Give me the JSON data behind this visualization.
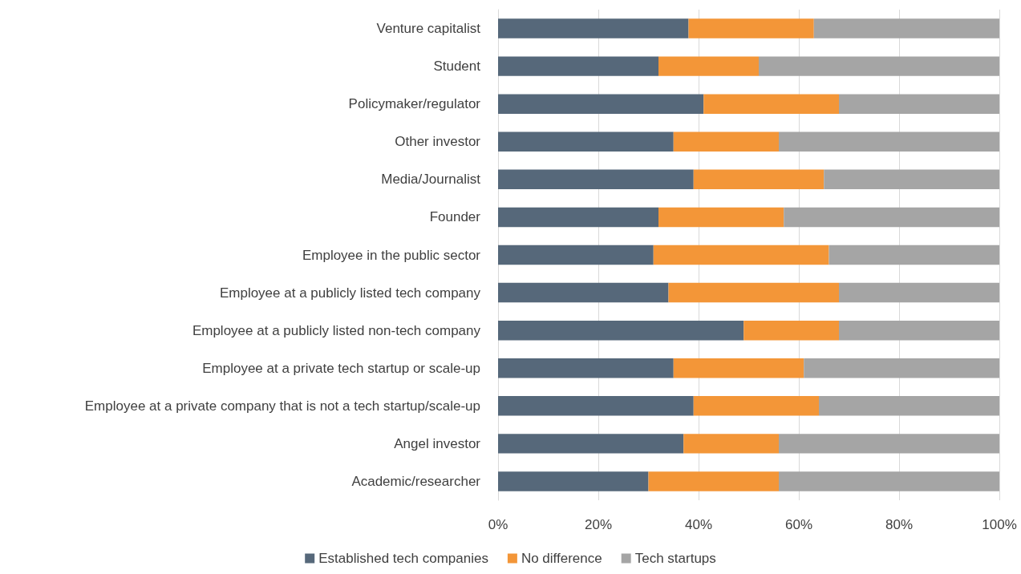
{
  "chart_data": {
    "type": "bar",
    "orientation": "horizontal",
    "stacked": true,
    "categories": [
      "Venture capitalist",
      "Student",
      "Policymaker/regulator",
      "Other investor",
      "Media/Journalist",
      "Founder",
      "Employee in the public sector",
      "Employee at a publicly listed tech company",
      "Employee at a publicly listed non-tech company",
      "Employee at a private tech startup or scale-up",
      "Employee at a private company that is not a tech startup/scale-up",
      "Angel investor",
      "Academic/researcher"
    ],
    "series": [
      {
        "name": "Established tech companies",
        "color": "#56687a",
        "values": [
          38,
          32,
          41,
          35,
          39,
          32,
          31,
          34,
          49,
          35,
          39,
          37,
          30
        ]
      },
      {
        "name": "No difference",
        "color": "#f39638",
        "values": [
          25,
          20,
          27,
          21,
          26,
          25,
          35,
          34,
          19,
          26,
          25,
          19,
          26
        ]
      },
      {
        "name": "Tech startups",
        "color": "#a5a5a5",
        "values": [
          37,
          48,
          32,
          44,
          35,
          43,
          34,
          32,
          32,
          39,
          36,
          44,
          44
        ]
      }
    ],
    "xlim": [
      0,
      100
    ],
    "xticks": [
      {
        "value": 0,
        "label": "0%"
      },
      {
        "value": 20,
        "label": "20%"
      },
      {
        "value": 40,
        "label": "40%"
      },
      {
        "value": 60,
        "label": "60%"
      },
      {
        "value": 80,
        "label": "80%"
      },
      {
        "value": 100,
        "label": "100%"
      }
    ],
    "grid": "x",
    "legend": "bottom"
  }
}
